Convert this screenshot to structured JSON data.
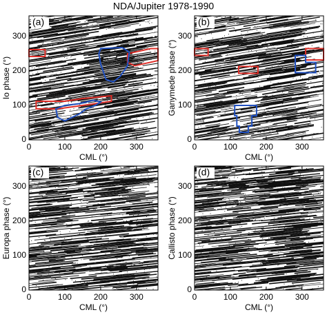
{
  "title": "NDA/Jupiter 1978-1990",
  "chart_data": [
    {
      "type": "phase-map",
      "panel_label": "(a)",
      "xlabel": "CML (°)",
      "ylabel": "Io phase (°)",
      "xlim": [
        0,
        360
      ],
      "ylim": [
        0,
        360
      ],
      "xticks": [
        0,
        100,
        200,
        300
      ],
      "yticks": [
        0,
        100,
        200,
        300
      ],
      "regions": [
        {
          "color": "#e0302a",
          "points": [
            [
              0,
              242
            ],
            [
              45,
              242
            ],
            [
              45,
              262
            ],
            [
              0,
              262
            ]
          ]
        },
        {
          "color": "#e0302a",
          "points": [
            [
              275,
              225
            ],
            [
              295,
              215
            ],
            [
              360,
              230
            ],
            [
              360,
              265
            ],
            [
              340,
              265
            ],
            [
              275,
              250
            ]
          ]
        },
        {
          "color": "#2050c0",
          "points": [
            [
              200,
              265
            ],
            [
              260,
              268
            ],
            [
              280,
              255
            ],
            [
              275,
              215
            ],
            [
              255,
              185
            ],
            [
              235,
              168
            ],
            [
              215,
              175
            ],
            [
              200,
              220
            ],
            [
              195,
              250
            ]
          ]
        },
        {
          "color": "#e0302a",
          "points": [
            [
              20,
              90
            ],
            [
              20,
              112
            ],
            [
              100,
              112
            ],
            [
              150,
              120
            ],
            [
              230,
              128
            ],
            [
              230,
              112
            ],
            [
              150,
              100
            ],
            [
              80,
              90
            ]
          ]
        },
        {
          "color": "#2050c0",
          "points": [
            [
              75,
              90
            ],
            [
              80,
              65
            ],
            [
              100,
              55
            ],
            [
              120,
              65
            ],
            [
              140,
              75
            ],
            [
              160,
              90
            ],
            [
              185,
              100
            ],
            [
              200,
              110
            ],
            [
              180,
              115
            ],
            [
              140,
              105
            ],
            [
              100,
              100
            ]
          ]
        }
      ]
    },
    {
      "type": "phase-map",
      "panel_label": "(b)",
      "xlabel": "CML (°)",
      "ylabel": "Ganymede phase (°)",
      "xlim": [
        0,
        360
      ],
      "ylim": [
        0,
        360
      ],
      "xticks": [
        0,
        100,
        200,
        300
      ],
      "yticks": [
        0,
        100,
        200,
        300
      ],
      "regions": [
        {
          "color": "#e0302a",
          "points": [
            [
              0,
              245
            ],
            [
              38,
              245
            ],
            [
              38,
              265
            ],
            [
              0,
              265
            ]
          ]
        },
        {
          "color": "#e0302a",
          "points": [
            [
              123,
              193
            ],
            [
              177,
              193
            ],
            [
              177,
              213
            ],
            [
              123,
              213
            ]
          ]
        },
        {
          "color": "#e0302a",
          "points": [
            [
              310,
              232
            ],
            [
              360,
              232
            ],
            [
              360,
              265
            ],
            [
              310,
              265
            ]
          ]
        },
        {
          "color": "#2050c0",
          "points": [
            [
              281,
              195
            ],
            [
              338,
              195
            ],
            [
              338,
              225
            ],
            [
              310,
              225
            ],
            [
              310,
              245
            ],
            [
              281,
              245
            ]
          ]
        },
        {
          "color": "#2050c0",
          "points": [
            [
              112,
              100
            ],
            [
              173,
              100
            ],
            [
              173,
              70
            ],
            [
              160,
              70
            ],
            [
              160,
              40
            ],
            [
              150,
              40
            ],
            [
              150,
              22
            ],
            [
              125,
              22
            ],
            [
              125,
              40
            ],
            [
              118,
              40
            ],
            [
              118,
              70
            ],
            [
              112,
              70
            ]
          ]
        }
      ]
    },
    {
      "type": "phase-map",
      "panel_label": "(c)",
      "xlabel": "CML (°)",
      "ylabel": "Europa phase (°)",
      "xlim": [
        0,
        360
      ],
      "ylim": [
        0,
        360
      ],
      "xticks": [
        0,
        100,
        200,
        300
      ],
      "yticks": [
        0,
        100,
        200,
        300
      ],
      "regions": []
    },
    {
      "type": "phase-map",
      "panel_label": "(d)",
      "xlabel": "CML (°)",
      "ylabel": "Callisto phase (°)",
      "xlim": [
        0,
        360
      ],
      "ylim": [
        0,
        360
      ],
      "xticks": [
        0,
        100,
        200,
        300
      ],
      "yticks": [
        0,
        100,
        200,
        300
      ],
      "regions": []
    }
  ]
}
